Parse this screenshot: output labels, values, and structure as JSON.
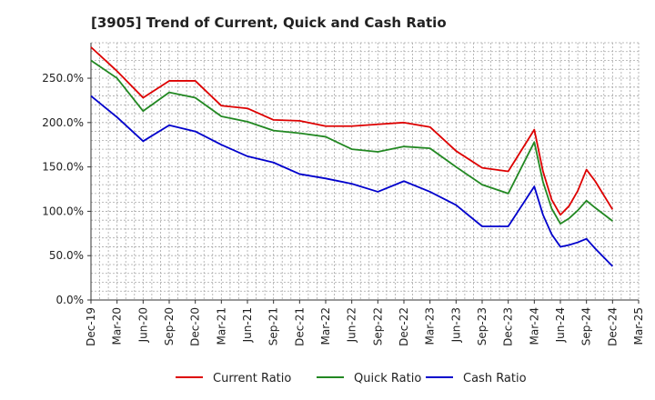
{
  "chart_data": {
    "type": "line",
    "title": "[3905]  Trend of Current, Quick and Cash Ratio",
    "xlabel": "",
    "ylabel": "",
    "ylim": [
      0,
      290
    ],
    "y_ticks": [
      0,
      50,
      100,
      150,
      200,
      250
    ],
    "y_tick_labels": [
      "0.0%",
      "50.0%",
      "100.0%",
      "150.0%",
      "200.0%",
      "250.0%"
    ],
    "x_tick_labels": [
      "Dec-19",
      "Mar-20",
      "Jun-20",
      "Sep-20",
      "Dec-20",
      "Mar-21",
      "Jun-21",
      "Sep-21",
      "Dec-21",
      "Mar-22",
      "Jun-22",
      "Sep-22",
      "Dec-22",
      "Mar-23",
      "Jun-23",
      "Sep-23",
      "Dec-23",
      "Mar-24",
      "Jun-24",
      "Sep-24",
      "Dec-24",
      "Mar-25"
    ],
    "x_tick_months": [
      0,
      3,
      6,
      9,
      12,
      15,
      18,
      21,
      24,
      27,
      30,
      33,
      36,
      39,
      42,
      45,
      48,
      51,
      54,
      57,
      60,
      63
    ],
    "x_range_months": [
      0,
      63
    ],
    "grid": true,
    "legend_position": "bottom",
    "series": [
      {
        "name": "Current Ratio",
        "color": "#dd0000",
        "months": [
          0,
          3,
          6,
          9,
          12,
          15,
          18,
          21,
          24,
          27,
          30,
          33,
          36,
          39,
          42,
          45,
          48,
          51,
          52,
          53,
          54,
          55,
          56,
          57,
          58,
          60
        ],
        "values": [
          285,
          258,
          228,
          247,
          247,
          219,
          216,
          203,
          202,
          196,
          196,
          198,
          200,
          195,
          168,
          149,
          145,
          192,
          145,
          113,
          96,
          106,
          123,
          147,
          134,
          102
        ]
      },
      {
        "name": "Quick Ratio",
        "color": "#228822",
        "months": [
          0,
          3,
          6,
          9,
          12,
          15,
          18,
          21,
          24,
          27,
          30,
          33,
          36,
          39,
          42,
          45,
          48,
          51,
          52,
          53,
          54,
          55,
          56,
          57,
          58,
          60
        ],
        "values": [
          270,
          250,
          213,
          234,
          228,
          207,
          201,
          191,
          188,
          184,
          170,
          167,
          173,
          171,
          150,
          130,
          120,
          178,
          133,
          103,
          86,
          92,
          101,
          112,
          104,
          89
        ]
      },
      {
        "name": "Cash Ratio",
        "color": "#0000cc",
        "months": [
          0,
          3,
          6,
          9,
          12,
          15,
          18,
          21,
          24,
          27,
          30,
          33,
          36,
          39,
          42,
          45,
          48,
          51,
          52,
          53,
          54,
          55,
          56,
          57,
          58,
          60
        ],
        "values": [
          230,
          206,
          179,
          197,
          190,
          175,
          162,
          155,
          142,
          137,
          131,
          122,
          134,
          122,
          107,
          83,
          83,
          128,
          96,
          74,
          60,
          62,
          65,
          69,
          58,
          38
        ]
      }
    ]
  }
}
